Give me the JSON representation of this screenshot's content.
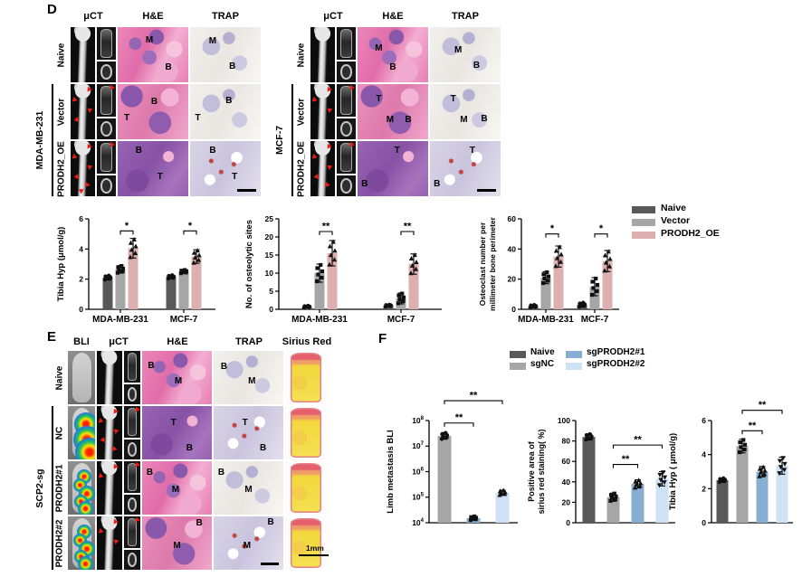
{
  "colors": {
    "naive": "#595959",
    "vector": "#a6a6a6",
    "prodh2_oe": "#ddb0af",
    "sgnc": "#a6a6a6",
    "sgprodh2_1": "#88aed2",
    "sgprodh2_2": "#cfe2f5",
    "arrow_red": "#ec1c12"
  },
  "panel_d": {
    "label": "D",
    "grids": [
      {
        "group_label": "MDA-MB-231",
        "columns": [
          "μCT",
          "H&E",
          "TRAP"
        ],
        "rows": [
          {
            "label": "Naive",
            "arrows": 0,
            "he_variant": "marrow",
            "trap_variant": "light",
            "he": [
              {
                "t": "M",
                "x": 45,
                "y": 24
              },
              {
                "t": "B",
                "x": 72,
                "y": 74
              }
            ],
            "trap": [
              {
                "t": "M",
                "x": 32,
                "y": 26
              },
              {
                "t": "B",
                "x": 60,
                "y": 72
              }
            ]
          },
          {
            "label": "Vector",
            "arrows": 4,
            "he_variant": "mixed",
            "trap_variant": "light",
            "he": [
              {
                "t": "T",
                "x": 13,
                "y": 62
              },
              {
                "t": "B",
                "x": 52,
                "y": 33
              }
            ],
            "trap": [
              {
                "t": "T",
                "x": 11,
                "y": 62
              },
              {
                "t": "B",
                "x": 55,
                "y": 31
              }
            ]
          },
          {
            "label": "PRODH2_OE",
            "arrows": 6,
            "he_variant": "tumor",
            "trap_variant": "dense",
            "he": [
              {
                "t": "B",
                "x": 30,
                "y": 18
              },
              {
                "t": "T",
                "x": 60,
                "y": 66
              }
            ],
            "trap": [
              {
                "t": "B",
                "x": 32,
                "y": 18
              },
              {
                "t": "T",
                "x": 63,
                "y": 66
              }
            ]
          }
        ]
      },
      {
        "group_label": "MCF-7",
        "columns": [
          "μCT",
          "H&E",
          "TRAP"
        ],
        "rows": [
          {
            "label": "Naive",
            "arrows": 0,
            "he_variant": "marrow",
            "trap_variant": "light",
            "he": [
              {
                "t": "M",
                "x": 30,
                "y": 40
              },
              {
                "t": "B",
                "x": 50,
                "y": 74
              }
            ],
            "trap": [
              {
                "t": "M",
                "x": 40,
                "y": 42
              },
              {
                "t": "B",
                "x": 66,
                "y": 70
              }
            ]
          },
          {
            "label": "Vector",
            "arrows": 3,
            "he_variant": "mixed",
            "trap_variant": "light",
            "he": [
              {
                "t": "T",
                "x": 30,
                "y": 28
              },
              {
                "t": "M",
                "x": 46,
                "y": 66
              },
              {
                "t": "B",
                "x": 72,
                "y": 66
              }
            ],
            "trap": [
              {
                "t": "T",
                "x": 33,
                "y": 28
              },
              {
                "t": "M",
                "x": 48,
                "y": 66
              },
              {
                "t": "B",
                "x": 77,
                "y": 64
              }
            ]
          },
          {
            "label": "PRODH2_OE",
            "arrows": 5,
            "he_variant": "tumor",
            "trap_variant": "dense",
            "he": [
              {
                "t": "T",
                "x": 56,
                "y": 18
              },
              {
                "t": "B",
                "x": 10,
                "y": 79
              }
            ],
            "trap": [
              {
                "t": "T",
                "x": 60,
                "y": 18
              },
              {
                "t": "B",
                "x": 10,
                "y": 79
              }
            ]
          }
        ]
      }
    ]
  },
  "panel_e": {
    "label": "E",
    "group_label": "SCP2-sg",
    "columns": [
      "BLI",
      "μCT",
      "H&E",
      "TRAP",
      "Sirius Red"
    ],
    "scale_label": "1mm",
    "rows": [
      {
        "label": "Naive",
        "arrows": 0,
        "bli_signal": "none",
        "he_variant": "marrow",
        "trap_variant": "light",
        "he": [
          {
            "t": "B",
            "x": 13,
            "y": 28
          },
          {
            "t": "M",
            "x": 52,
            "y": 58
          }
        ],
        "trap": [
          {
            "t": "B",
            "x": 15,
            "y": 30
          },
          {
            "t": "M",
            "x": 55,
            "y": 58
          }
        ]
      },
      {
        "label": "NC",
        "arrows": 5,
        "bli_signal": "high",
        "he_variant": "tumor",
        "trap_variant": "dense",
        "he": [
          {
            "t": "T",
            "x": 45,
            "y": 32
          },
          {
            "t": "B",
            "x": 68,
            "y": 79
          }
        ],
        "trap": [
          {
            "t": "T",
            "x": 45,
            "y": 32
          },
          {
            "t": "B",
            "x": 71,
            "y": 79
          }
        ]
      },
      {
        "label": "PRODH2#1",
        "arrows": 2,
        "bli_signal": "medium",
        "he_variant": "marrow",
        "trap_variant": "light",
        "he": [
          {
            "t": "B",
            "x": 11,
            "y": 22
          },
          {
            "t": "M",
            "x": 48,
            "y": 55
          }
        ],
        "trap": [
          {
            "t": "B",
            "x": 11,
            "y": 22
          },
          {
            "t": "M",
            "x": 50,
            "y": 55
          }
        ]
      },
      {
        "label": "PRODH2#2",
        "arrows": 3,
        "bli_signal": "medium",
        "he_variant": "mixed",
        "trap_variant": "dense",
        "he": [
          {
            "t": "B",
            "x": 82,
            "y": 14
          },
          {
            "t": "M",
            "x": 50,
            "y": 56
          }
        ],
        "trap": [
          {
            "t": "B",
            "x": 82,
            "y": 12
          },
          {
            "t": "M",
            "x": 48,
            "y": 56
          }
        ]
      }
    ]
  },
  "panel_f": {
    "label": "F"
  },
  "legend_d": {
    "items": [
      {
        "label": "Naive",
        "color": "#595959"
      },
      {
        "label": "Vector",
        "color": "#a6a6a6"
      },
      {
        "label": "PRODH2_OE",
        "color": "#ddb0af"
      }
    ]
  },
  "legend_f": {
    "items": [
      {
        "label": "Naive",
        "color": "#595959",
        "col": 0,
        "row": 0
      },
      {
        "label": "sgNC",
        "color": "#a6a6a6",
        "col": 0,
        "row": 1
      },
      {
        "label": "sgPRODH2#1",
        "color": "#88aed2",
        "col": 1,
        "row": 0
      },
      {
        "label": "sgPRODH2#2",
        "color": "#cfe2f5",
        "col": 1,
        "row": 1
      }
    ]
  },
  "chart_data": [
    {
      "id": "d1",
      "type": "bar",
      "title": "",
      "ylabel": [
        "Tibia Hyp (μmol/g)"
      ],
      "ylim": [
        0,
        6
      ],
      "yticks": [
        0,
        2,
        4,
        6
      ],
      "categories": [
        "MDA-MB-231",
        "MCF-7"
      ],
      "series": [
        {
          "name": "Naive",
          "color": "#595959",
          "marker": "circle",
          "values": [
            2.1,
            2.15
          ],
          "err": [
            0.15,
            0.12
          ]
        },
        {
          "name": "Vector",
          "color": "#a6a6a6",
          "marker": "square",
          "values": [
            2.65,
            2.5
          ],
          "err": [
            0.25,
            0.12
          ]
        },
        {
          "name": "PRODH2_OE",
          "color": "#ddb0af",
          "marker": "triangle",
          "values": [
            4.05,
            3.5
          ],
          "err": [
            0.65,
            0.45
          ]
        }
      ],
      "sig": [
        {
          "cat": 0,
          "i": 1,
          "j": 2,
          "y": 5.2,
          "label": "*"
        },
        {
          "cat": 1,
          "i": 1,
          "j": 2,
          "y": 5.2,
          "label": "*"
        }
      ]
    },
    {
      "id": "d2",
      "type": "bar",
      "title": "",
      "ylabel": [
        "No. of osteolytic sites"
      ],
      "ylim": [
        0,
        25
      ],
      "yticks": [
        0,
        5,
        10,
        15,
        20,
        25
      ],
      "categories": [
        "MDA-MB-231",
        "MCF-7"
      ],
      "series": [
        {
          "name": "Naive",
          "color": "#595959",
          "marker": "circle",
          "values": [
            0.7,
            1.0
          ],
          "err": [
            0.3,
            0.3
          ]
        },
        {
          "name": "Vector",
          "color": "#a6a6a6",
          "marker": "square",
          "values": [
            10,
            3
          ],
          "err": [
            2.5,
            1.5
          ]
        },
        {
          "name": "PRODH2_OE",
          "color": "#ddb0af",
          "marker": "triangle",
          "values": [
            15.5,
            12.5
          ],
          "err": [
            3.5,
            2.8
          ]
        }
      ],
      "sig": [
        {
          "cat": 0,
          "i": 1,
          "j": 2,
          "y": 21.5,
          "label": "**"
        },
        {
          "cat": 1,
          "i": 1,
          "j": 2,
          "y": 21.5,
          "label": "**"
        }
      ]
    },
    {
      "id": "d3",
      "type": "bar",
      "title": "",
      "ylabel": [
        "Osteoclast number per",
        "millimeter bone perimeter"
      ],
      "ylim": [
        0,
        60
      ],
      "yticks": [
        0,
        20,
        40,
        60
      ],
      "categories": [
        "MDA-MB-231",
        "MCF-7"
      ],
      "series": [
        {
          "name": "Naive",
          "color": "#595959",
          "marker": "circle",
          "values": [
            2,
            3
          ],
          "err": [
            1,
            1.5
          ]
        },
        {
          "name": "Vector",
          "color": "#a6a6a6",
          "marker": "square",
          "values": [
            21,
            15
          ],
          "err": [
            4,
            6
          ]
        },
        {
          "name": "PRODH2_OE",
          "color": "#ddb0af",
          "marker": "triangle",
          "values": [
            35,
            32
          ],
          "err": [
            7,
            7
          ]
        }
      ],
      "sig": [
        {
          "cat": 0,
          "i": 1,
          "j": 2,
          "y": 50,
          "label": "*"
        },
        {
          "cat": 1,
          "i": 1,
          "j": 2,
          "y": 50,
          "label": "*"
        }
      ]
    },
    {
      "id": "f1",
      "type": "bar",
      "title": "",
      "log": true,
      "ylabel": [
        "Limb metastasis BLI"
      ],
      "ylim": [
        10000,
        100000000
      ],
      "yticks": [
        10000,
        100000,
        1000000,
        10000000,
        100000000
      ],
      "categories": [
        ""
      ],
      "series": [
        {
          "name": "sgNC",
          "color": "#a6a6a6",
          "marker": "circle",
          "values": [
            25000000
          ],
          "err": [
            0.13
          ]
        },
        {
          "name": "sgPRODH2#1",
          "color": "#88aed2",
          "marker": "square",
          "values": [
            15000
          ],
          "err": [
            0.08
          ]
        },
        {
          "name": "sgPRODH2#2",
          "color": "#cfe2f5",
          "marker": "triangle",
          "values": [
            150000
          ],
          "err": [
            0.1
          ]
        }
      ],
      "sig": [
        {
          "cat": 0,
          "i": 0,
          "j": 1,
          "y": 80000000,
          "label": "**"
        },
        {
          "cat": 0,
          "i": 0,
          "j": 2,
          "y": 600000000,
          "label": "**"
        }
      ]
    },
    {
      "id": "f2",
      "type": "bar",
      "title": "",
      "ylabel": [
        "Positive area of",
        "sirius red staining( %)"
      ],
      "ylim": [
        0,
        100
      ],
      "yticks": [
        0,
        20,
        40,
        60,
        80,
        100
      ],
      "categories": [
        ""
      ],
      "series": [
        {
          "name": "Naive",
          "color": "#595959",
          "marker": "circle",
          "values": [
            84
          ],
          "err": [
            3
          ]
        },
        {
          "name": "sgNC",
          "color": "#a6a6a6",
          "marker": "square",
          "values": [
            25
          ],
          "err": [
            4
          ]
        },
        {
          "name": "sgPRODH2#1",
          "color": "#88aed2",
          "marker": "triangle",
          "values": [
            38
          ],
          "err": [
            4
          ]
        },
        {
          "name": "sgPRODH2#2",
          "color": "#cfe2f5",
          "marker": "triangle-down",
          "values": [
            43
          ],
          "err": [
            7
          ]
        }
      ],
      "sig": [
        {
          "cat": 0,
          "i": 1,
          "j": 2,
          "y": 57,
          "label": "**"
        },
        {
          "cat": 0,
          "i": 1,
          "j": 3,
          "y": 76,
          "label": "**"
        }
      ]
    },
    {
      "id": "f3",
      "type": "bar",
      "title": "",
      "ylabel": [
        "Tibia Hyp ( μmol/g)"
      ],
      "ylim": [
        0,
        6
      ],
      "yticks": [
        0,
        2,
        4,
        6
      ],
      "categories": [
        ""
      ],
      "series": [
        {
          "name": "Naive",
          "color": "#595959",
          "marker": "circle",
          "values": [
            2.5
          ],
          "err": [
            0.12
          ]
        },
        {
          "name": "sgNC",
          "color": "#a6a6a6",
          "marker": "square",
          "values": [
            4.5
          ],
          "err": [
            0.4
          ]
        },
        {
          "name": "sgPRODH2#1",
          "color": "#88aed2",
          "marker": "triangle",
          "values": [
            3.0
          ],
          "err": [
            0.3
          ]
        },
        {
          "name": "sgPRODH2#2",
          "color": "#cfe2f5",
          "marker": "triangle-down",
          "values": [
            3.35
          ],
          "err": [
            0.5
          ]
        }
      ],
      "sig": [
        {
          "cat": 0,
          "i": 1,
          "j": 2,
          "y": 5.4,
          "label": "**"
        },
        {
          "cat": 0,
          "i": 1,
          "j": 3,
          "y": 6.6,
          "label": "**"
        }
      ]
    }
  ]
}
